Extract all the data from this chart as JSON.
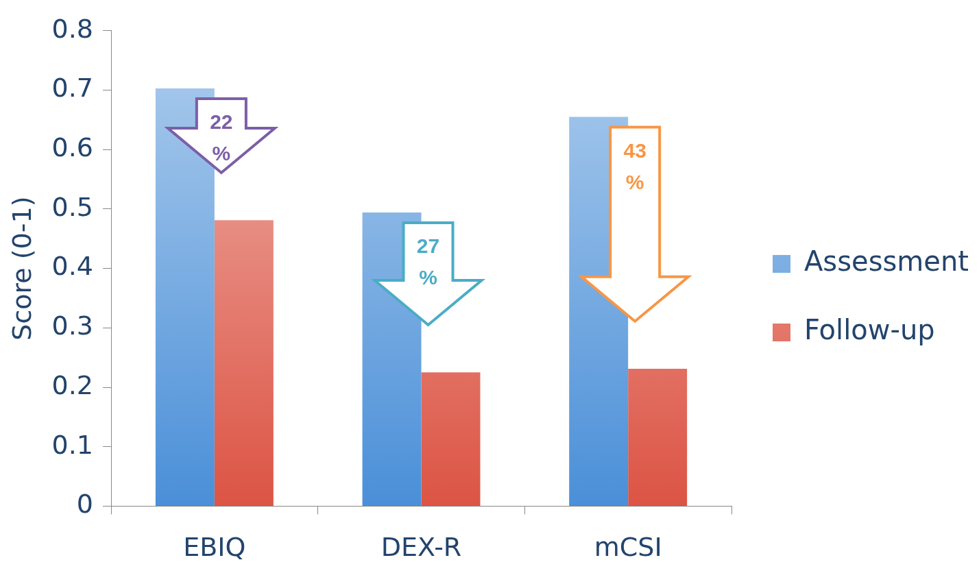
{
  "chart_data": {
    "type": "bar",
    "ylabel": "Score (0-1)",
    "categories": [
      "EBIQ",
      "DEX-R",
      "mCSI"
    ],
    "series": [
      {
        "name": "Assessment",
        "color": "#4a8fd8",
        "values": [
          0.703,
          0.494,
          0.655
        ]
      },
      {
        "name": "Follow-up",
        "color": "#dc5444",
        "values": [
          0.481,
          0.225,
          0.231
        ]
      }
    ],
    "ylim": [
      0,
      0.8
    ],
    "yticks": [
      0,
      0.1,
      0.2,
      0.3,
      0.4,
      0.5,
      0.6,
      0.7,
      0.8
    ],
    "grid": false,
    "legend": "right",
    "annotations": [
      "22 %",
      "27 %",
      "43 %"
    ]
  }
}
